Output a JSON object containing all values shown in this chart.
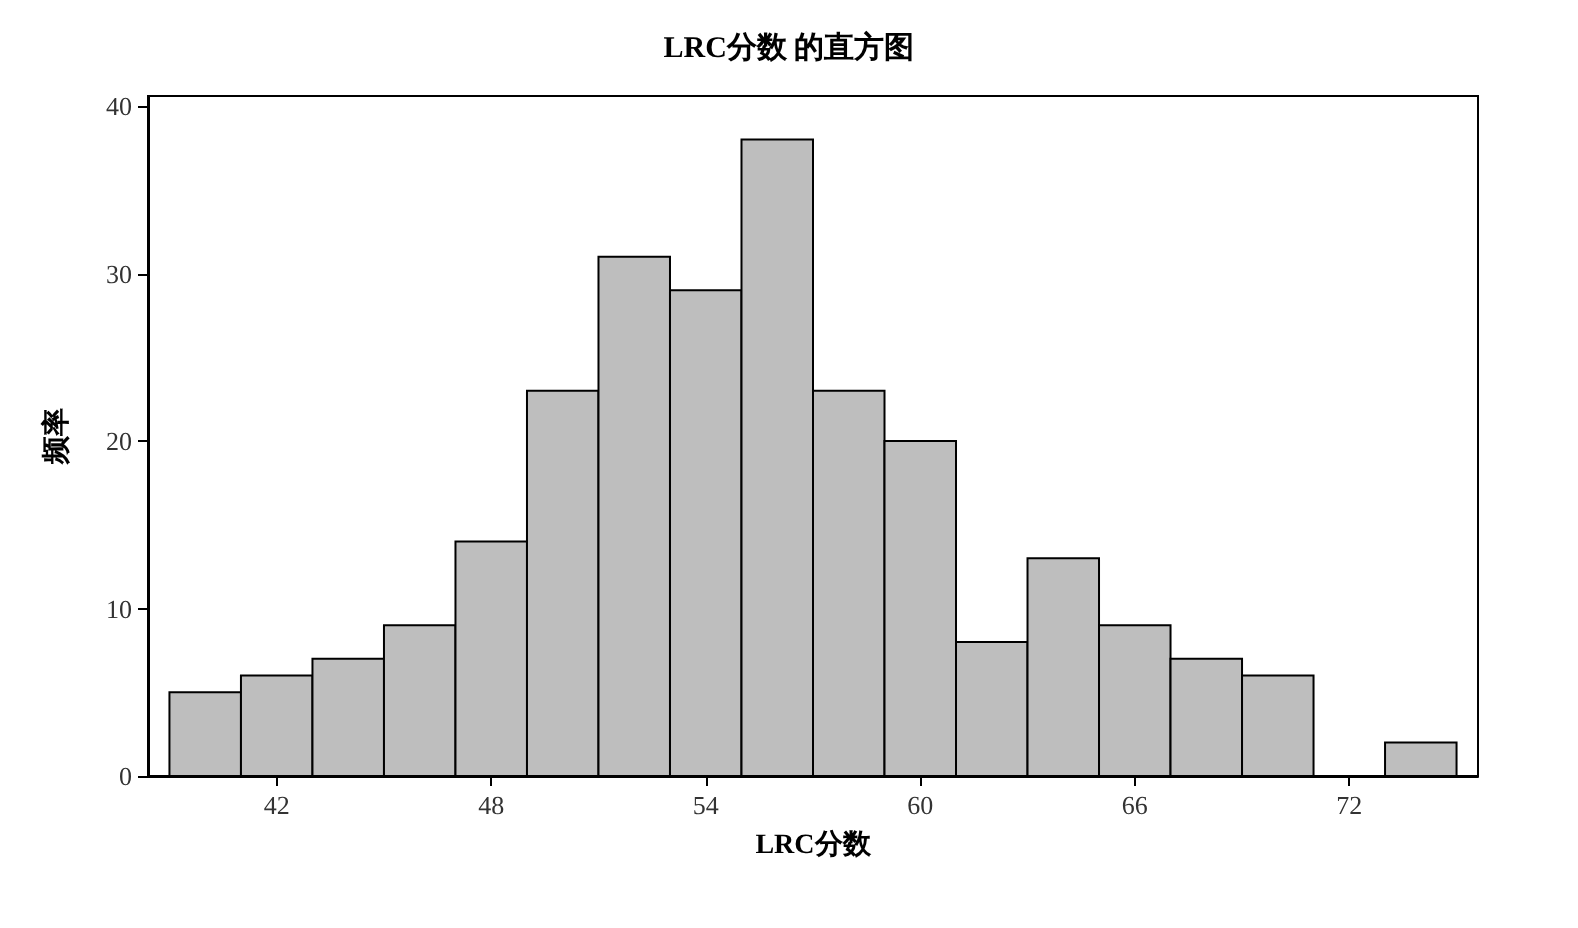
{
  "chart_data": {
    "type": "histogram",
    "title": "LRC分数 的直方图",
    "xlabel": "LRC分数",
    "ylabel": "频率",
    "bins": [
      39,
      41,
      43,
      45,
      47,
      49,
      51,
      53,
      55,
      57,
      59,
      61,
      63,
      65,
      67,
      69,
      71,
      73,
      75
    ],
    "values": [
      5,
      6,
      7,
      9,
      14,
      23,
      31,
      29,
      38,
      23,
      20,
      8,
      13,
      9,
      7,
      6,
      0,
      2
    ],
    "color": "#bebebe",
    "xlim": [
      38.4,
      75.6
    ],
    "xticks": [
      42,
      48,
      54,
      60,
      66,
      72
    ],
    "ylim": [
      0,
      40.6
    ],
    "yticks": [
      0,
      10,
      20,
      30,
      40
    ],
    "grid": false
  }
}
